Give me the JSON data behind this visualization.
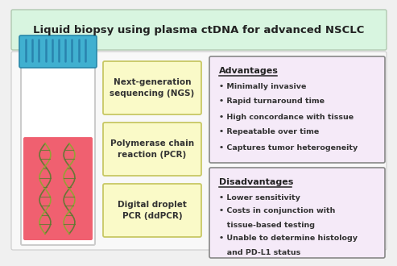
{
  "title": "Liquid biopsy using plasma ctDNA for advanced NSCLC",
  "title_bg": "#d8f5e0",
  "title_border": "#b0c8b0",
  "bg_color": "#f0f0f0",
  "method_boxes": [
    "Next-generation\nsequencing (NGS)",
    "Polymerase chain\nreaction (PCR)",
    "Digital droplet\nPCR (ddPCR)"
  ],
  "method_box_color": "#fafac8",
  "method_box_edge": "#c8c864",
  "advantages_title": "Advantages",
  "advantages": [
    "Minimally invasive",
    "Rapid turnaround time",
    "High concordance with tissue",
    "Repeatable over time",
    "Captures tumor heterogeneity"
  ],
  "disadvantages_title": "Disadvantages",
  "disadvantages_lines": [
    [
      "Lower sensitivity",
      true
    ],
    [
      "Costs in conjunction with",
      true
    ],
    [
      "tissue-based testing",
      false
    ],
    [
      "Unable to determine histology",
      true
    ],
    [
      "and PD-L1 status",
      false
    ]
  ],
  "adv_box_color": "#f5eaf8",
  "adv_box_edge": "#888888",
  "tube_liquid_color": "#f06070",
  "tube_cap_color": "#40b0d0",
  "tube_body_color": "#f0f0f0",
  "tube_border_color": "#cccccc",
  "dna_color": "#5a7a30"
}
